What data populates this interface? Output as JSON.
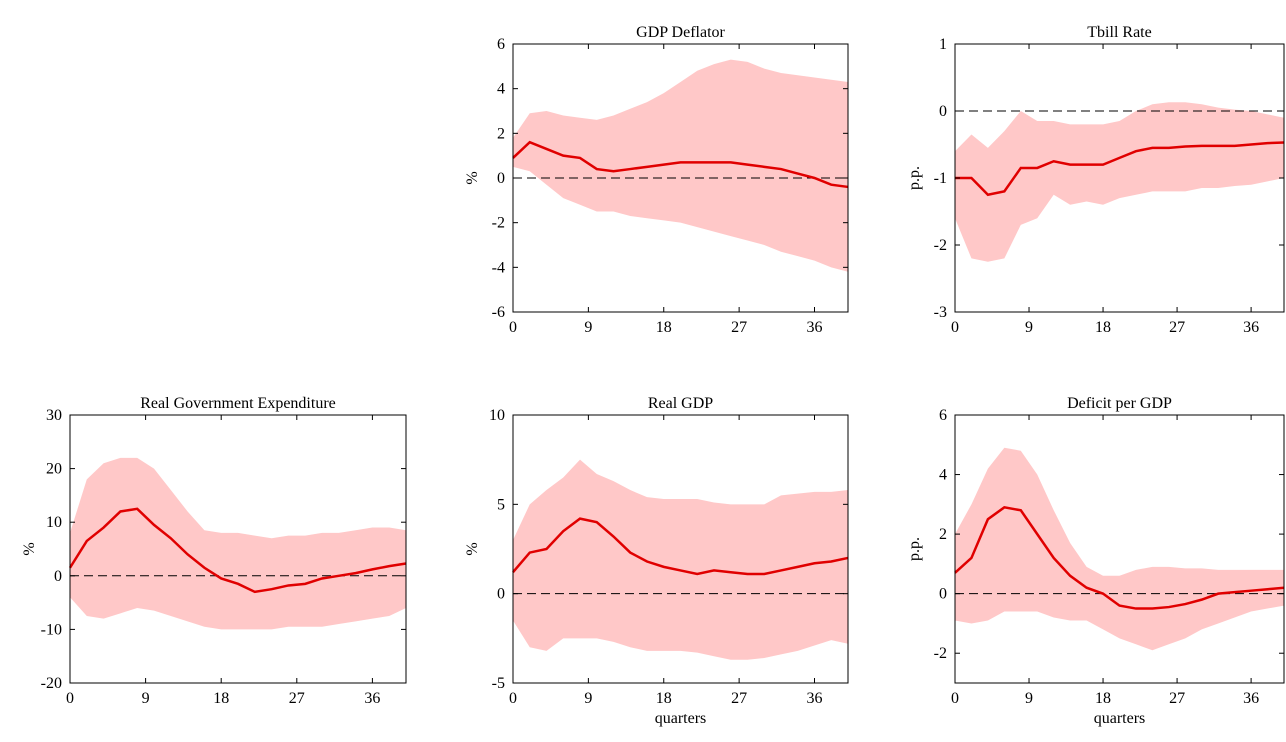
{
  "chart_data": [
    {
      "type": "line",
      "title": "GDP Deflator",
      "ylabel": "%",
      "color": "#e00000",
      "band_color": "#ffc8c8",
      "zero_line": true,
      "x": [
        0,
        2,
        4,
        6,
        8,
        10,
        12,
        14,
        16,
        18,
        20,
        22,
        24,
        26,
        28,
        30,
        32,
        34,
        36,
        38,
        40
      ],
      "values": [
        0.9,
        1.6,
        1.3,
        1.0,
        0.9,
        0.4,
        0.3,
        0.4,
        0.5,
        0.6,
        0.7,
        0.7,
        0.7,
        0.7,
        0.6,
        0.5,
        0.4,
        0.2,
        0.0,
        -0.3,
        -0.4
      ],
      "upper": [
        1.8,
        2.9,
        3.0,
        2.8,
        2.7,
        2.6,
        2.8,
        3.1,
        3.4,
        3.8,
        4.3,
        4.8,
        5.1,
        5.3,
        5.2,
        4.9,
        4.7,
        4.6,
        4.5,
        4.4,
        4.3
      ],
      "lower": [
        0.5,
        0.3,
        -0.3,
        -0.9,
        -1.2,
        -1.5,
        -1.5,
        -1.7,
        -1.8,
        -1.9,
        -2.0,
        -2.2,
        -2.4,
        -2.6,
        -2.8,
        -3.0,
        -3.3,
        -3.5,
        -3.7,
        -4.0,
        -4.2
      ],
      "xlim": [
        0,
        40
      ],
      "xticks": [
        0,
        9,
        18,
        27,
        36
      ],
      "ylim": [
        -6,
        6
      ],
      "yticks": [
        -6,
        -4,
        -2,
        0,
        2,
        4,
        6
      ]
    },
    {
      "type": "line",
      "title": "Tbill Rate",
      "ylabel": "p.p.",
      "color": "#e00000",
      "band_color": "#ffc8c8",
      "zero_line": true,
      "x": [
        0,
        2,
        4,
        6,
        8,
        10,
        12,
        14,
        16,
        18,
        20,
        22,
        24,
        26,
        28,
        30,
        32,
        34,
        36,
        38,
        40
      ],
      "values": [
        -1.0,
        -1.0,
        -1.25,
        -1.2,
        -0.85,
        -0.85,
        -0.75,
        -0.8,
        -0.8,
        -0.8,
        -0.7,
        -0.6,
        -0.55,
        -0.55,
        -0.53,
        -0.52,
        -0.52,
        -0.52,
        -0.5,
        -0.48,
        -0.47
      ],
      "upper": [
        -0.6,
        -0.35,
        -0.55,
        -0.3,
        0.0,
        -0.15,
        -0.15,
        -0.2,
        -0.2,
        -0.2,
        -0.15,
        0.0,
        0.1,
        0.13,
        0.13,
        0.1,
        0.05,
        0.02,
        0.0,
        -0.05,
        -0.1
      ],
      "lower": [
        -1.6,
        -2.2,
        -2.25,
        -2.2,
        -1.7,
        -1.6,
        -1.25,
        -1.4,
        -1.35,
        -1.4,
        -1.3,
        -1.25,
        -1.2,
        -1.2,
        -1.2,
        -1.15,
        -1.15,
        -1.12,
        -1.1,
        -1.05,
        -1.0
      ],
      "xlim": [
        0,
        40
      ],
      "xticks": [
        0,
        9,
        18,
        27,
        36
      ],
      "ylim": [
        -3,
        1
      ],
      "yticks": [
        -3,
        -2,
        -1,
        0,
        1
      ]
    },
    {
      "type": "line",
      "title": "Real Government Expenditure",
      "ylabel": "%",
      "color": "#e00000",
      "band_color": "#ffc8c8",
      "zero_line": true,
      "x": [
        0,
        2,
        4,
        6,
        8,
        10,
        12,
        14,
        16,
        18,
        20,
        22,
        24,
        26,
        28,
        30,
        32,
        34,
        36,
        38,
        40
      ],
      "values": [
        1.5,
        6.5,
        9,
        12,
        12.5,
        9.5,
        7,
        4,
        1.5,
        -0.5,
        -1.5,
        -3,
        -2.5,
        -1.8,
        -1.5,
        -0.5,
        0,
        0.5,
        1.2,
        1.8,
        2.3
      ],
      "upper": [
        8,
        18,
        21,
        22,
        22,
        20,
        16,
        12,
        8.5,
        8,
        8,
        7.5,
        7,
        7.5,
        7.5,
        8,
        8,
        8.5,
        9,
        9,
        8.5
      ],
      "lower": [
        -4,
        -7.5,
        -8,
        -7,
        -6,
        -6.5,
        -7.5,
        -8.5,
        -9.5,
        -10,
        -10,
        -10,
        -10,
        -9.5,
        -9.5,
        -9.5,
        -9,
        -8.5,
        -8,
        -7.5,
        -6
      ],
      "xlim": [
        0,
        40
      ],
      "xticks": [
        0,
        9,
        18,
        27,
        36
      ],
      "ylim": [
        -20,
        30
      ],
      "yticks": [
        -20,
        -10,
        0,
        10,
        20,
        30
      ]
    },
    {
      "type": "line",
      "title": "Real GDP",
      "ylabel": "%",
      "xlabel": "quarters",
      "color": "#e00000",
      "band_color": "#ffc8c8",
      "zero_line": true,
      "x": [
        0,
        2,
        4,
        6,
        8,
        10,
        12,
        14,
        16,
        18,
        20,
        22,
        24,
        26,
        28,
        30,
        32,
        34,
        36,
        38,
        40
      ],
      "values": [
        1.2,
        2.3,
        2.5,
        3.5,
        4.2,
        4.0,
        3.2,
        2.3,
        1.8,
        1.5,
        1.3,
        1.1,
        1.3,
        1.2,
        1.1,
        1.1,
        1.3,
        1.5,
        1.7,
        1.8,
        2.0
      ],
      "upper": [
        3,
        5,
        5.8,
        6.5,
        7.5,
        6.7,
        6.3,
        5.8,
        5.4,
        5.3,
        5.3,
        5.3,
        5.1,
        5.0,
        5.0,
        5.0,
        5.5,
        5.6,
        5.7,
        5.7,
        5.8
      ],
      "lower": [
        -1.5,
        -3,
        -3.2,
        -2.5,
        -2.5,
        -2.5,
        -2.7,
        -3,
        -3.2,
        -3.2,
        -3.2,
        -3.3,
        -3.5,
        -3.7,
        -3.7,
        -3.6,
        -3.4,
        -3.2,
        -2.9,
        -2.6,
        -2.8
      ],
      "xlim": [
        0,
        40
      ],
      "xticks": [
        0,
        9,
        18,
        27,
        36
      ],
      "ylim": [
        -5,
        10
      ],
      "yticks": [
        -5,
        0,
        5,
        10
      ]
    },
    {
      "type": "line",
      "title": "Deficit per GDP",
      "ylabel": "p.p.",
      "xlabel": "quarters",
      "color": "#e00000",
      "band_color": "#ffc8c8",
      "zero_line": true,
      "x": [
        0,
        2,
        4,
        6,
        8,
        10,
        12,
        14,
        16,
        18,
        20,
        22,
        24,
        26,
        28,
        30,
        32,
        34,
        36,
        38,
        40
      ],
      "values": [
        0.7,
        1.2,
        2.5,
        2.9,
        2.8,
        2.0,
        1.2,
        0.6,
        0.2,
        0.0,
        -0.4,
        -0.5,
        -0.5,
        -0.45,
        -0.35,
        -0.2,
        0.0,
        0.05,
        0.1,
        0.15,
        0.2
      ],
      "upper": [
        2,
        3,
        4.2,
        4.9,
        4.8,
        4.0,
        2.8,
        1.7,
        0.9,
        0.6,
        0.6,
        0.8,
        0.9,
        0.9,
        0.85,
        0.85,
        0.8,
        0.8,
        0.8,
        0.8,
        0.8
      ],
      "lower": [
        -0.9,
        -1.0,
        -0.9,
        -0.6,
        -0.6,
        -0.6,
        -0.8,
        -0.9,
        -0.9,
        -1.2,
        -1.5,
        -1.7,
        -1.9,
        -1.7,
        -1.5,
        -1.2,
        -1.0,
        -0.8,
        -0.6,
        -0.5,
        -0.4
      ],
      "xlim": [
        0,
        40
      ],
      "xticks": [
        0,
        9,
        18,
        27,
        36
      ],
      "ylim": [
        -3,
        6
      ],
      "yticks": [
        -2,
        0,
        2,
        4,
        6
      ]
    }
  ]
}
